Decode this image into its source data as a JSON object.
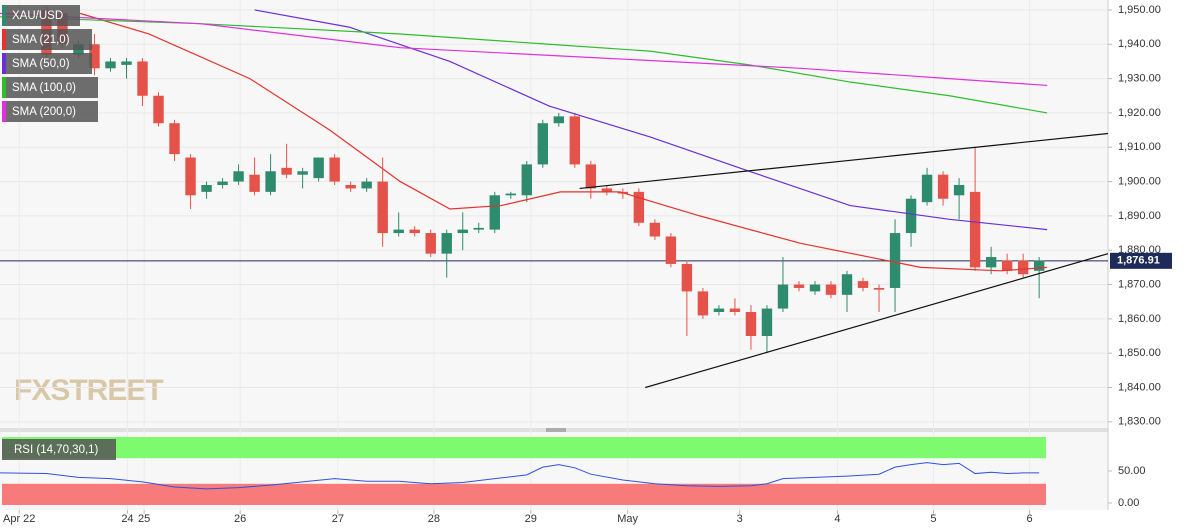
{
  "chart_data": {
    "type": "candlestick",
    "symbol": "XAU/USD",
    "price_line": {
      "value": 1876.91,
      "label": "1,876.91",
      "color": "#1e2a5a"
    },
    "watermark": "FXSTREET",
    "up_color": "#2e8b6e",
    "down_color": "#e5524a",
    "open": [
      1950,
      1949,
      1937,
      1940,
      1933,
      1934,
      1935,
      1925,
      1917,
      1907,
      1897,
      1899,
      1900,
      1902,
      1897,
      1904,
      1902,
      1901,
      1907,
      1899,
      1898,
      1900,
      1885,
      1886,
      1885,
      1879,
      1885,
      1886,
      1886,
      1896,
      1896,
      1905,
      1917,
      1919,
      1905,
      1898,
      1897,
      1897,
      1888,
      1884,
      1876,
      1868,
      1862,
      1863,
      1862,
      1855,
      1863,
      1870,
      1868,
      1870,
      1867,
      1871,
      1869,
      1869,
      1885,
      1894,
      1902,
      1896,
      1897,
      1875,
      1877,
      1877,
      1874
    ],
    "close": [
      1937,
      1940,
      1940,
      1933,
      1935,
      1935,
      1925,
      1917,
      1908,
      1896,
      1899,
      1900,
      1903,
      1897,
      1903,
      1902,
      1903,
      1907,
      1900,
      1898,
      1900,
      1885,
      1886,
      1885,
      1879,
      1885,
      1886,
      1886.5,
      1896,
      1896.5,
      1905,
      1917,
      1919,
      1905,
      1898,
      1897,
      1896.5,
      1888,
      1884,
      1876,
      1868,
      1861,
      1863,
      1862,
      1855,
      1863,
      1870,
      1869,
      1870,
      1867,
      1873,
      1869,
      1868.5,
      1885,
      1895,
      1902,
      1895,
      1899,
      1875,
      1878,
      1874,
      1873,
      1877
    ],
    "high": [
      1951,
      1950,
      1941,
      1943,
      1936,
      1936,
      1936,
      1926,
      1918,
      1908,
      1900,
      1901,
      1905,
      1907,
      1908,
      1911,
      1904,
      1907,
      1908,
      1900,
      1901,
      1907,
      1891,
      1887,
      1886,
      1886,
      1891,
      1888,
      1897,
      1897,
      1906,
      1918,
      1920,
      1920,
      1906,
      1899,
      1898,
      1898,
      1889,
      1885,
      1877,
      1869,
      1864,
      1866,
      1864,
      1864,
      1878,
      1871,
      1871,
      1871,
      1874,
      1872,
      1870,
      1889,
      1896,
      1904,
      1903,
      1901,
      1910,
      1881,
      1879,
      1879,
      1878
    ],
    "low": [
      1936,
      1939,
      1936,
      1931,
      1932,
      1930,
      1922,
      1916,
      1906,
      1892,
      1895,
      1898,
      1899,
      1896,
      1896,
      1901,
      1898,
      1900,
      1899,
      1897,
      1897,
      1881,
      1884,
      1884,
      1878,
      1872,
      1880,
      1885,
      1885,
      1895,
      1894,
      1904,
      1916,
      1904,
      1895,
      1896,
      1895,
      1887,
      1883,
      1875,
      1855,
      1860,
      1861,
      1861,
      1851,
      1850,
      1862,
      1868,
      1867,
      1866,
      1862,
      1868,
      1862,
      1862,
      1881,
      1893,
      1893,
      1889,
      1874,
      1873,
      1873,
      1872,
      1866
    ],
    "ylim": [
      1828.2,
      1952.9
    ],
    "xlim": [
      -2.9,
      66.3
    ],
    "yticks": [
      {
        "value": 1950,
        "label": "1,950.00"
      },
      {
        "value": 1940,
        "label": "1,940.00"
      },
      {
        "value": 1930,
        "label": "1,930.00"
      },
      {
        "value": 1920,
        "label": "1,920.00"
      },
      {
        "value": 1910,
        "label": "1,910.00"
      },
      {
        "value": 1900,
        "label": "1,900.00"
      },
      {
        "value": 1890,
        "label": "1,890.00"
      },
      {
        "value": 1880,
        "label": "1,880.00"
      },
      {
        "value": 1870,
        "label": "1,870.00"
      },
      {
        "value": 1860,
        "label": "1,860.00"
      },
      {
        "value": 1850,
        "label": "1,850.00"
      },
      {
        "value": 1840,
        "label": "1,840.00"
      },
      {
        "value": 1830,
        "label": "1,830.00"
      }
    ],
    "xticks": [
      {
        "value": -1.7,
        "label": "Apr 22"
      },
      {
        "value": 5.06,
        "label": "24"
      },
      {
        "value": 6.1,
        "label": "25"
      },
      {
        "value": 12.1,
        "label": "26"
      },
      {
        "value": 18.2,
        "label": "27"
      },
      {
        "value": 24.2,
        "label": "28"
      },
      {
        "value": 30.25,
        "label": "29"
      },
      {
        "value": 36.3,
        "label": "May"
      },
      {
        "value": 43.3,
        "label": "3"
      },
      {
        "value": 49.4,
        "label": "4"
      },
      {
        "value": 55.4,
        "label": "5"
      },
      {
        "value": 61.4,
        "label": "6"
      }
    ],
    "series": [
      {
        "name": "SMA (21,0)",
        "color": "#e5322a",
        "x": [
          2.1,
          6.4,
          12.7,
          17.7,
          22.1,
          25.2,
          28.4,
          32.1,
          35.8,
          40.8,
          47.1,
          51.4,
          54.6,
          59.6,
          62.5
        ],
        "values": [
          1949,
          1943,
          1930,
          1915,
          1900,
          1892,
          1893,
          1897,
          1897,
          1890,
          1882,
          1878,
          1875,
          1874,
          1875
        ]
      },
      {
        "name": "SMA (50,0)",
        "color": "#6a2ed8",
        "x": [
          13,
          18.9,
          25.2,
          31.4,
          37.7,
          43.9,
          50.2,
          56.4,
          62.5
        ],
        "values": [
          1950,
          1945,
          1935,
          1922,
          1913,
          1903,
          1893,
          1889,
          1886
        ]
      },
      {
        "name": "SMA (100,0)",
        "color": "#2ebd2e",
        "x": [
          -2.9,
          9.6,
          22.1,
          31.4,
          37.7,
          43.9,
          50.2,
          56.4,
          62.5
        ],
        "values": [
          1948,
          1946,
          1943,
          1940,
          1938,
          1934,
          1929,
          1925,
          1920
        ]
      },
      {
        "name": "SMA (200,0)",
        "color": "#e030e0",
        "x": [
          -2.9,
          9.6,
          22.1,
          34.6,
          47.1,
          56.4,
          62.5
        ],
        "values": [
          1949,
          1946,
          1939,
          1936,
          1933,
          1930,
          1928
        ]
      }
    ],
    "trendlines": [
      {
        "x": [
          33.3,
          66.3
        ],
        "values": [
          1898,
          1914
        ]
      },
      {
        "x": [
          37.4,
          66.3
        ],
        "values": [
          1840,
          1879
        ]
      }
    ],
    "rsi": {
      "label": "RSI (14,70,30,1)",
      "color": "#3050e0",
      "overbought": 70,
      "oversold": 30,
      "ylim": [
        -11,
        111
      ],
      "yticks": [
        {
          "value": 50,
          "label": "50.00"
        },
        {
          "value": 0,
          "label": "0.00"
        }
      ],
      "x": [
        -2.9,
        0,
        2,
        4,
        6,
        8,
        10,
        12,
        14,
        16,
        18,
        20,
        22,
        24,
        26,
        28,
        30,
        31,
        32,
        33,
        34,
        36,
        38,
        40,
        42,
        44,
        45,
        46,
        48,
        50,
        52,
        53,
        54,
        55,
        56,
        57,
        58,
        59,
        60,
        61,
        62
      ],
      "values": [
        47,
        46,
        40,
        38,
        33,
        25,
        22,
        24,
        28,
        33,
        38,
        34,
        34,
        30,
        32,
        38,
        44,
        56,
        60,
        55,
        45,
        36,
        30,
        27,
        26,
        27,
        30,
        38,
        40,
        42,
        45,
        56,
        60,
        63,
        60,
        62,
        46,
        48,
        46,
        47,
        47
      ]
    }
  }
}
